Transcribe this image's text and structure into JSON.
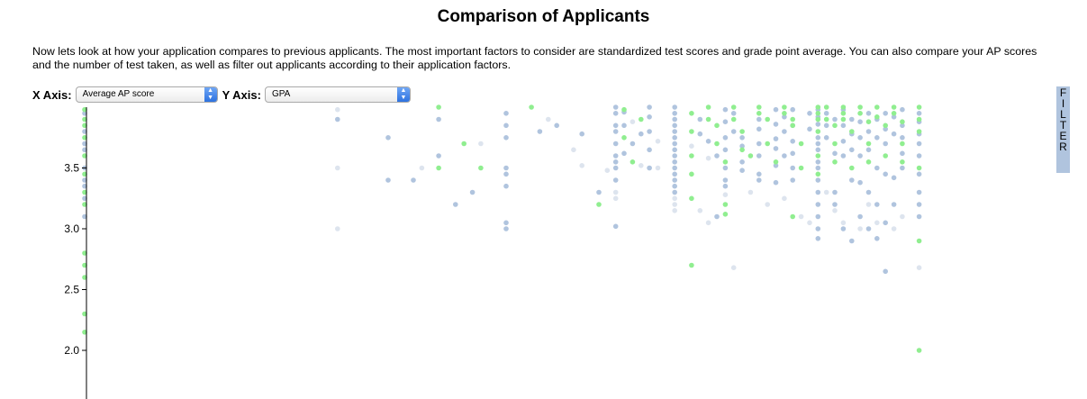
{
  "page": {
    "title": "Comparison of Applicants",
    "intro": "Now lets look at how your application compares to previous applicants. The most important factors to consider are standardized test scores and grade point average. You can also compare your AP scores and the number of test taken, as well as filter out applicants according to their application factors."
  },
  "controls": {
    "x_label": "X Axis:",
    "x_selected": "Average AP score",
    "y_label": "Y Axis:",
    "y_selected": "GPA",
    "filter_letters": [
      "F",
      "I",
      "L",
      "T",
      "E",
      "R"
    ]
  },
  "colors": {
    "accepted": "#90ee90",
    "rejected": "#b0c4de",
    "faint": "#dde4ee",
    "filter_bg": "#b0c4de"
  },
  "chart_data": {
    "type": "scatter",
    "title": "",
    "xlabel": "Average AP score",
    "ylabel": "GPA",
    "ylim": [
      1.6,
      4.0
    ],
    "yticks": [
      2.0,
      2.5,
      3.0,
      3.5
    ],
    "ytick_labels": [
      "2.0",
      "2.5",
      "3.0",
      "3.5"
    ],
    "grid": false,
    "series": [
      {
        "category": "accepted",
        "points": [
          [
            0,
            3.98
          ],
          [
            0,
            3.9
          ],
          [
            0,
            3.85
          ],
          [
            0,
            3.75
          ],
          [
            0,
            3.6
          ],
          [
            0,
            3.45
          ],
          [
            0,
            3.3
          ],
          [
            0,
            3.2
          ],
          [
            0,
            2.8
          ],
          [
            0,
            2.7
          ],
          [
            0,
            2.6
          ],
          [
            0,
            2.3
          ],
          [
            0,
            2.15
          ],
          [
            42,
            4.0
          ],
          [
            42,
            3.5
          ],
          [
            45,
            3.7
          ],
          [
            47,
            3.5
          ],
          [
            53,
            4.0
          ],
          [
            61,
            3.2
          ],
          [
            64,
            3.98
          ],
          [
            64,
            3.75
          ],
          [
            65,
            3.55
          ],
          [
            66,
            3.9
          ],
          [
            72,
            3.95
          ],
          [
            72,
            3.8
          ],
          [
            72,
            3.6
          ],
          [
            72,
            3.45
          ],
          [
            72,
            3.25
          ],
          [
            72,
            2.7
          ],
          [
            74,
            4.0
          ],
          [
            74,
            3.9
          ],
          [
            75,
            3.85
          ],
          [
            75,
            3.7
          ],
          [
            76,
            3.55
          ],
          [
            76,
            3.2
          ],
          [
            76,
            3.12
          ],
          [
            77,
            4.0
          ],
          [
            77,
            3.9
          ],
          [
            78,
            3.8
          ],
          [
            78,
            3.65
          ],
          [
            79,
            3.6
          ],
          [
            80,
            4.0
          ],
          [
            80,
            3.95
          ],
          [
            81,
            3.9
          ],
          [
            81,
            3.7
          ],
          [
            82,
            3.55
          ],
          [
            83,
            4.0
          ],
          [
            83,
            3.95
          ],
          [
            84,
            3.9
          ],
          [
            84,
            3.85
          ],
          [
            84,
            3.1
          ],
          [
            85,
            3.7
          ],
          [
            85,
            3.5
          ],
          [
            87,
            4.0
          ],
          [
            87,
            3.95
          ],
          [
            87,
            3.9
          ],
          [
            87,
            3.8
          ],
          [
            87,
            3.6
          ],
          [
            87,
            3.45
          ],
          [
            88,
            4.0
          ],
          [
            88,
            3.9
          ],
          [
            89,
            3.85
          ],
          [
            89,
            3.7
          ],
          [
            89,
            3.55
          ],
          [
            90,
            4.0
          ],
          [
            90,
            3.95
          ],
          [
            90,
            3.9
          ],
          [
            91,
            3.8
          ],
          [
            91,
            3.5
          ],
          [
            92,
            4.0
          ],
          [
            92,
            3.95
          ],
          [
            93,
            3.88
          ],
          [
            93,
            3.7
          ],
          [
            93,
            3.55
          ],
          [
            94,
            4.0
          ],
          [
            94,
            3.92
          ],
          [
            95,
            3.85
          ],
          [
            95,
            3.6
          ],
          [
            96,
            4.0
          ],
          [
            96,
            3.95
          ],
          [
            97,
            3.88
          ],
          [
            97,
            3.7
          ],
          [
            97,
            3.55
          ],
          [
            99,
            4.0
          ],
          [
            99,
            3.9
          ],
          [
            99,
            3.8
          ],
          [
            99,
            3.5
          ],
          [
            99,
            2.9
          ],
          [
            99,
            2.0
          ]
        ]
      },
      {
        "category": "rejected",
        "points": [
          [
            0,
            3.95
          ],
          [
            0,
            3.8
          ],
          [
            0,
            3.7
          ],
          [
            0,
            3.65
          ],
          [
            0,
            3.5
          ],
          [
            0,
            3.4
          ],
          [
            0,
            3.35
          ],
          [
            0,
            3.25
          ],
          [
            0,
            3.1
          ],
          [
            30,
            3.9
          ],
          [
            36,
            3.75
          ],
          [
            36,
            3.4
          ],
          [
            39,
            3.4
          ],
          [
            42,
            3.9
          ],
          [
            42,
            3.6
          ],
          [
            44,
            3.2
          ],
          [
            46,
            3.3
          ],
          [
            50,
            3.95
          ],
          [
            50,
            3.85
          ],
          [
            50,
            3.75
          ],
          [
            50,
            3.5
          ],
          [
            50,
            3.45
          ],
          [
            50,
            3.35
          ],
          [
            50,
            3.05
          ],
          [
            50,
            3.0
          ],
          [
            54,
            3.8
          ],
          [
            56,
            3.85
          ],
          [
            59,
            3.78
          ],
          [
            61,
            3.3
          ],
          [
            63,
            4.0
          ],
          [
            63,
            3.95
          ],
          [
            63,
            3.85
          ],
          [
            63,
            3.8
          ],
          [
            63,
            3.7
          ],
          [
            63,
            3.6
          ],
          [
            63,
            3.55
          ],
          [
            63,
            3.5
          ],
          [
            63,
            3.4
          ],
          [
            63,
            3.02
          ],
          [
            64,
            3.96
          ],
          [
            64,
            3.85
          ],
          [
            64,
            3.62
          ],
          [
            65,
            3.7
          ],
          [
            66,
            3.78
          ],
          [
            67,
            4.0
          ],
          [
            67,
            3.92
          ],
          [
            67,
            3.8
          ],
          [
            67,
            3.65
          ],
          [
            67,
            3.5
          ],
          [
            70,
            4.0
          ],
          [
            70,
            3.95
          ],
          [
            70,
            3.9
          ],
          [
            70,
            3.85
          ],
          [
            70,
            3.8
          ],
          [
            70,
            3.75
          ],
          [
            70,
            3.7
          ],
          [
            70,
            3.65
          ],
          [
            70,
            3.6
          ],
          [
            70,
            3.55
          ],
          [
            70,
            3.5
          ],
          [
            70,
            3.45
          ],
          [
            70,
            3.4
          ],
          [
            70,
            3.35
          ],
          [
            70,
            3.3
          ],
          [
            73,
            3.9
          ],
          [
            73,
            3.78
          ],
          [
            74,
            3.72
          ],
          [
            75,
            3.6
          ],
          [
            75,
            3.1
          ],
          [
            76,
            3.98
          ],
          [
            76,
            3.88
          ],
          [
            76,
            3.75
          ],
          [
            76,
            3.65
          ],
          [
            76,
            3.5
          ],
          [
            76,
            3.4
          ],
          [
            76,
            3.35
          ],
          [
            77,
            3.95
          ],
          [
            77,
            3.8
          ],
          [
            78,
            3.75
          ],
          [
            78,
            3.68
          ],
          [
            78,
            3.55
          ],
          [
            78,
            3.48
          ],
          [
            80,
            3.9
          ],
          [
            80,
            3.82
          ],
          [
            80,
            3.7
          ],
          [
            80,
            3.6
          ],
          [
            80,
            3.45
          ],
          [
            80,
            3.4
          ],
          [
            82,
            3.98
          ],
          [
            82,
            3.86
          ],
          [
            82,
            3.74
          ],
          [
            82,
            3.66
          ],
          [
            82,
            3.52
          ],
          [
            82,
            3.38
          ],
          [
            83,
            3.92
          ],
          [
            83,
            3.8
          ],
          [
            83,
            3.6
          ],
          [
            84,
            3.98
          ],
          [
            84,
            3.85
          ],
          [
            84,
            3.72
          ],
          [
            84,
            3.62
          ],
          [
            84,
            3.5
          ],
          [
            84,
            3.4
          ],
          [
            86,
            3.95
          ],
          [
            86,
            3.82
          ],
          [
            87,
            3.98
          ],
          [
            87,
            3.92
          ],
          [
            87,
            3.86
          ],
          [
            87,
            3.75
          ],
          [
            87,
            3.7
          ],
          [
            87,
            3.65
          ],
          [
            87,
            3.55
          ],
          [
            87,
            3.5
          ],
          [
            87,
            3.4
          ],
          [
            87,
            3.3
          ],
          [
            87,
            3.2
          ],
          [
            87,
            3.1
          ],
          [
            87,
            3.0
          ],
          [
            87,
            2.92
          ],
          [
            88,
            3.95
          ],
          [
            88,
            3.85
          ],
          [
            88,
            3.75
          ],
          [
            89,
            3.9
          ],
          [
            89,
            3.62
          ],
          [
            89,
            3.3
          ],
          [
            89,
            3.2
          ],
          [
            90,
            3.98
          ],
          [
            90,
            3.85
          ],
          [
            90,
            3.72
          ],
          [
            90,
            3.6
          ],
          [
            90,
            3.0
          ],
          [
            91,
            3.9
          ],
          [
            91,
            3.78
          ],
          [
            91,
            3.65
          ],
          [
            91,
            3.4
          ],
          [
            91,
            2.9
          ],
          [
            92,
            3.88
          ],
          [
            92,
            3.75
          ],
          [
            92,
            3.6
          ],
          [
            92,
            3.38
          ],
          [
            92,
            3.1
          ],
          [
            93,
            3.95
          ],
          [
            93,
            3.8
          ],
          [
            93,
            3.65
          ],
          [
            93,
            3.3
          ],
          [
            93,
            3.0
          ],
          [
            94,
            3.9
          ],
          [
            94,
            3.75
          ],
          [
            94,
            3.5
          ],
          [
            94,
            3.2
          ],
          [
            94,
            2.92
          ],
          [
            95,
            3.95
          ],
          [
            95,
            3.82
          ],
          [
            95,
            3.7
          ],
          [
            95,
            3.45
          ],
          [
            95,
            3.05
          ],
          [
            95,
            2.65
          ],
          [
            96,
            3.92
          ],
          [
            96,
            3.78
          ],
          [
            96,
            3.42
          ],
          [
            96,
            3.2
          ],
          [
            97,
            3.98
          ],
          [
            97,
            3.85
          ],
          [
            97,
            3.75
          ],
          [
            97,
            3.62
          ],
          [
            97,
            3.5
          ],
          [
            99,
            3.95
          ],
          [
            99,
            3.88
          ],
          [
            99,
            3.78
          ],
          [
            99,
            3.7
          ],
          [
            99,
            3.6
          ],
          [
            99,
            3.45
          ],
          [
            99,
            3.3
          ],
          [
            99,
            3.2
          ],
          [
            99,
            3.1
          ]
        ]
      },
      {
        "category": "faint",
        "points": [
          [
            30,
            3.98
          ],
          [
            30,
            3.5
          ],
          [
            30,
            3.0
          ],
          [
            40,
            3.5
          ],
          [
            47,
            3.7
          ],
          [
            55,
            3.9
          ],
          [
            58,
            3.65
          ],
          [
            59,
            3.52
          ],
          [
            62,
            3.48
          ],
          [
            63,
            3.3
          ],
          [
            63,
            3.25
          ],
          [
            65,
            3.88
          ],
          [
            66,
            3.52
          ],
          [
            67,
            3.5
          ],
          [
            68,
            3.72
          ],
          [
            68,
            3.5
          ],
          [
            70,
            3.25
          ],
          [
            70,
            3.2
          ],
          [
            70,
            3.15
          ],
          [
            72,
            3.68
          ],
          [
            73,
            3.15
          ],
          [
            74,
            3.05
          ],
          [
            74,
            3.58
          ],
          [
            76,
            3.28
          ],
          [
            77,
            2.68
          ],
          [
            79,
            3.3
          ],
          [
            81,
            3.2
          ],
          [
            83,
            3.25
          ],
          [
            85,
            3.1
          ],
          [
            86,
            3.05
          ],
          [
            88,
            3.3
          ],
          [
            89,
            3.15
          ],
          [
            90,
            3.05
          ],
          [
            92,
            3.0
          ],
          [
            93,
            3.2
          ],
          [
            94,
            3.05
          ],
          [
            96,
            3.0
          ],
          [
            97,
            3.1
          ],
          [
            99,
            2.68
          ]
        ]
      }
    ]
  }
}
